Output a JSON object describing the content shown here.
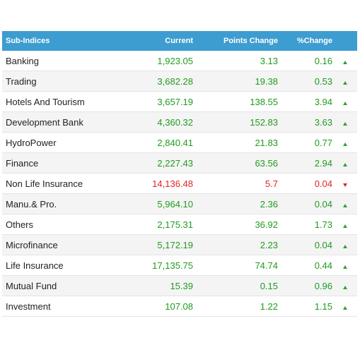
{
  "headers": {
    "name": "Sub-Indices",
    "current": "Current",
    "points": "Points Change",
    "pct": "%Change"
  },
  "colors": {
    "header_bg": "#3d9dd0",
    "up": "#1e9c1e",
    "down": "#e02424"
  },
  "rows": [
    {
      "name": "Banking",
      "current": "1,923.05",
      "points": "3.13",
      "pct": "0.16",
      "dir": "up"
    },
    {
      "name": "Trading",
      "current": "3,682.28",
      "points": "19.38",
      "pct": "0.53",
      "dir": "up"
    },
    {
      "name": "Hotels And Tourism",
      "current": "3,657.19",
      "points": "138.55",
      "pct": "3.94",
      "dir": "up"
    },
    {
      "name": "Development Bank",
      "current": "4,360.32",
      "points": "152.83",
      "pct": "3.63",
      "dir": "up"
    },
    {
      "name": "HydroPower",
      "current": "2,840.41",
      "points": "21.83",
      "pct": "0.77",
      "dir": "up"
    },
    {
      "name": "Finance",
      "current": "2,227.43",
      "points": "63.56",
      "pct": "2.94",
      "dir": "up"
    },
    {
      "name": "Non Life Insurance",
      "current": "14,136.48",
      "points": "5.7",
      "pct": "0.04",
      "dir": "down"
    },
    {
      "name": "Manu.& Pro.",
      "current": "5,964.10",
      "points": "2.36",
      "pct": "0.04",
      "dir": "up"
    },
    {
      "name": "Others",
      "current": "2,175.31",
      "points": "36.92",
      "pct": "1.73",
      "dir": "up"
    },
    {
      "name": "Microfinance",
      "current": "5,172.19",
      "points": "2.23",
      "pct": "0.04",
      "dir": "up"
    },
    {
      "name": "Life Insurance",
      "current": "17,135.75",
      "points": "74.74",
      "pct": "0.44",
      "dir": "up"
    },
    {
      "name": "Mutual Fund",
      "current": "15.39",
      "points": "0.15",
      "pct": "0.96",
      "dir": "up"
    },
    {
      "name": "Investment",
      "current": "107.08",
      "points": "1.22",
      "pct": "1.15",
      "dir": "up"
    }
  ]
}
